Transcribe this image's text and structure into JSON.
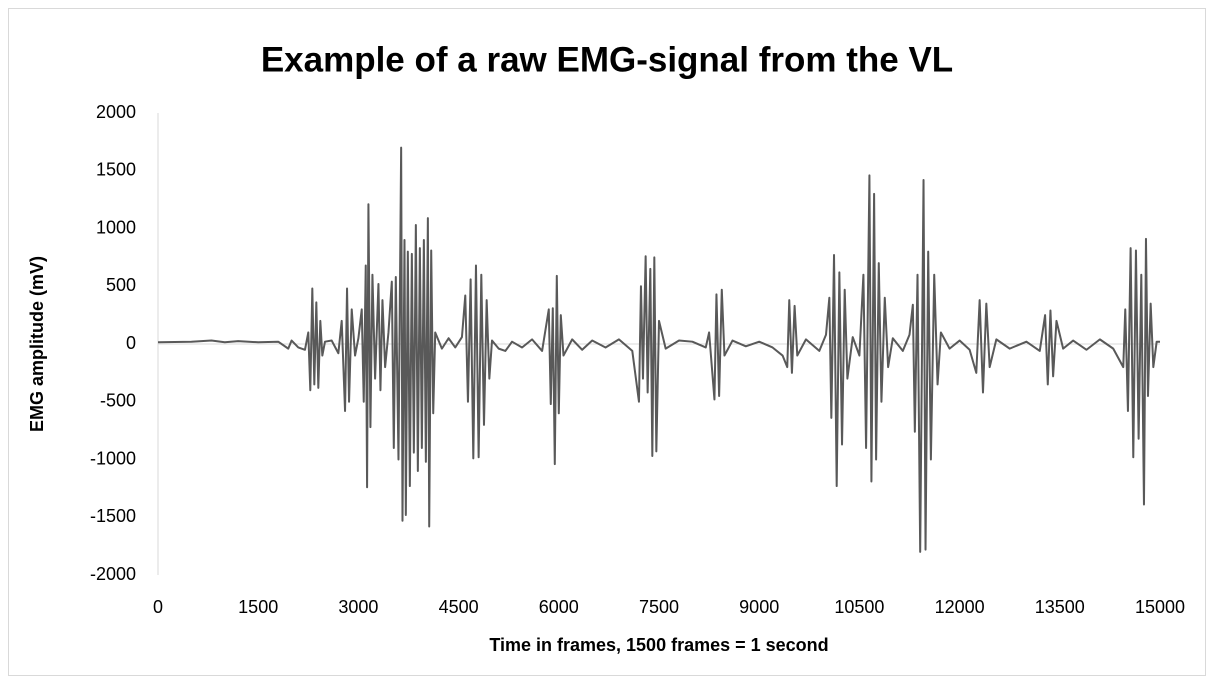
{
  "chart_data": {
    "type": "line",
    "title": "Example of a raw EMG-signal from the VL",
    "xlabel": "Time in frames, 1500 frames = 1 second",
    "ylabel": "EMG amplitude (mV)",
    "color": "#595959",
    "xlim": [
      0,
      15000
    ],
    "xticks": [
      0,
      1500,
      3000,
      4500,
      6000,
      7500,
      9000,
      10500,
      12000,
      13500,
      15000
    ],
    "ylim": [
      -2000,
      2000
    ],
    "yticks": [
      -2000,
      -1500,
      -1000,
      -500,
      0,
      500,
      1000,
      1500,
      2000
    ],
    "grid": false,
    "x": [
      0,
      500,
      800,
      1000,
      1200,
      1500,
      1800,
      1950,
      2000,
      2100,
      2200,
      2250,
      2280,
      2310,
      2340,
      2370,
      2400,
      2430,
      2460,
      2500,
      2600,
      2700,
      2750,
      2800,
      2830,
      2860,
      2900,
      2950,
      3000,
      3050,
      3080,
      3110,
      3130,
      3150,
      3180,
      3210,
      3250,
      3300,
      3330,
      3360,
      3400,
      3450,
      3500,
      3530,
      3560,
      3600,
      3640,
      3660,
      3690,
      3710,
      3740,
      3770,
      3800,
      3830,
      3860,
      3890,
      3920,
      3950,
      3980,
      4010,
      4040,
      4060,
      4090,
      4120,
      4150,
      4250,
      4350,
      4450,
      4550,
      4600,
      4640,
      4680,
      4720,
      4760,
      4800,
      4840,
      4880,
      4920,
      4960,
      5000,
      5100,
      5200,
      5300,
      5450,
      5600,
      5750,
      5800,
      5850,
      5880,
      5910,
      5940,
      5970,
      6000,
      6030,
      6070,
      6200,
      6350,
      6500,
      6700,
      6900,
      7100,
      7200,
      7230,
      7260,
      7300,
      7330,
      7370,
      7400,
      7430,
      7460,
      7500,
      7600,
      7800,
      8000,
      8200,
      8250,
      8330,
      8360,
      8400,
      8440,
      8480,
      8600,
      8800,
      9000,
      9200,
      9350,
      9420,
      9450,
      9490,
      9530,
      9570,
      9700,
      9900,
      10000,
      10050,
      10080,
      10120,
      10160,
      10200,
      10240,
      10280,
      10320,
      10400,
      10500,
      10560,
      10600,
      10650,
      10680,
      10720,
      10750,
      10790,
      10830,
      10880,
      10930,
      11000,
      11150,
      11250,
      11300,
      11330,
      11370,
      11410,
      11460,
      11490,
      11530,
      11570,
      11620,
      11670,
      11720,
      11850,
      12000,
      12150,
      12250,
      12300,
      12350,
      12400,
      12450,
      12550,
      12750,
      13000,
      13200,
      13280,
      13320,
      13360,
      13400,
      13450,
      13550,
      13700,
      13900,
      14100,
      14300,
      14450,
      14480,
      14520,
      14560,
      14600,
      14640,
      14680,
      14720,
      14760,
      14790,
      14820,
      14860,
      14900,
      14950,
      15000
    ],
    "values": [
      15,
      20,
      30,
      15,
      25,
      15,
      20,
      -40,
      30,
      -30,
      -50,
      100,
      -400,
      480,
      -350,
      360,
      -380,
      200,
      -100,
      20,
      30,
      -80,
      200,
      -580,
      480,
      -500,
      300,
      -100,
      50,
      300,
      -500,
      680,
      -1240,
      1210,
      -720,
      600,
      -300,
      520,
      -400,
      380,
      -200,
      100,
      540,
      -900,
      580,
      -1000,
      1700,
      -1530,
      900,
      -1480,
      800,
      -1230,
      780,
      -940,
      1030,
      -1100,
      830,
      -900,
      900,
      -1020,
      1090,
      -1580,
      810,
      -600,
      100,
      -40,
      50,
      -30,
      60,
      420,
      -500,
      560,
      -990,
      680,
      -980,
      600,
      -700,
      380,
      -300,
      30,
      -40,
      -60,
      20,
      -30,
      40,
      -60,
      120,
      300,
      -520,
      310,
      -1040,
      590,
      -600,
      250,
      -100,
      40,
      -50,
      30,
      -30,
      40,
      -60,
      -500,
      500,
      -300,
      760,
      -420,
      650,
      -970,
      750,
      -930,
      200,
      -40,
      30,
      20,
      -30,
      100,
      -480,
      430,
      -450,
      470,
      -100,
      30,
      -20,
      20,
      -30,
      -100,
      -200,
      380,
      -250,
      330,
      -100,
      40,
      -60,
      80,
      400,
      -640,
      770,
      -1230,
      620,
      -870,
      470,
      -300,
      60,
      -100,
      600,
      -900,
      1460,
      -1190,
      1300,
      -1000,
      700,
      -500,
      400,
      -200,
      50,
      -60,
      80,
      340,
      -760,
      600,
      -1800,
      1420,
      -1780,
      800,
      -1000,
      600,
      -350,
      100,
      -40,
      30,
      -50,
      -250,
      380,
      -420,
      350,
      -200,
      40,
      -40,
      20,
      -60,
      250,
      -350,
      290,
      -280,
      200,
      -40,
      30,
      -50,
      40,
      -40,
      -200,
      300,
      -580,
      830,
      -980,
      810,
      -820,
      600,
      -1390,
      910,
      -450,
      350,
      -200,
      20,
      20
    ]
  }
}
